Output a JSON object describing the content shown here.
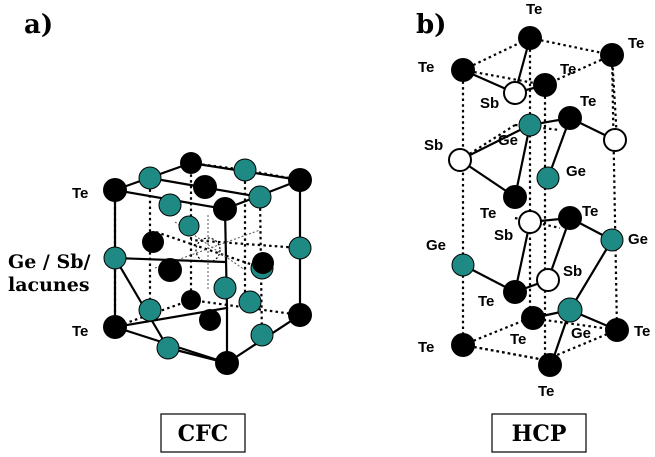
{
  "panels": {
    "a": {
      "label": "a)",
      "caption": "CFC",
      "labels": {
        "te_top": "Te",
        "te_bottom": "Te",
        "ge_sb_line1": "Ge / Sb/",
        "ge_sb_line2": "lacunes"
      }
    },
    "b": {
      "label": "b)",
      "caption": "HCP",
      "labels": {
        "te1": "Te",
        "te2": "Te",
        "te3": "Te",
        "te4": "Te",
        "te5": "Te",
        "te6": "Te",
        "te7": "Te",
        "te8": "Te",
        "te9": "Te",
        "te10": "Te",
        "te11": "Te",
        "te12": "Te",
        "sb1": "Sb",
        "sb2": "Sb",
        "sb3": "Sb",
        "sb4": "Sb",
        "ge1": "Ge",
        "ge2": "Ge",
        "ge3": "Ge",
        "ge4": "Ge",
        "ge5": "Ge"
      }
    }
  },
  "colors": {
    "te": "#000000",
    "ge": "#1f8a84",
    "sb": "#ffffff"
  }
}
